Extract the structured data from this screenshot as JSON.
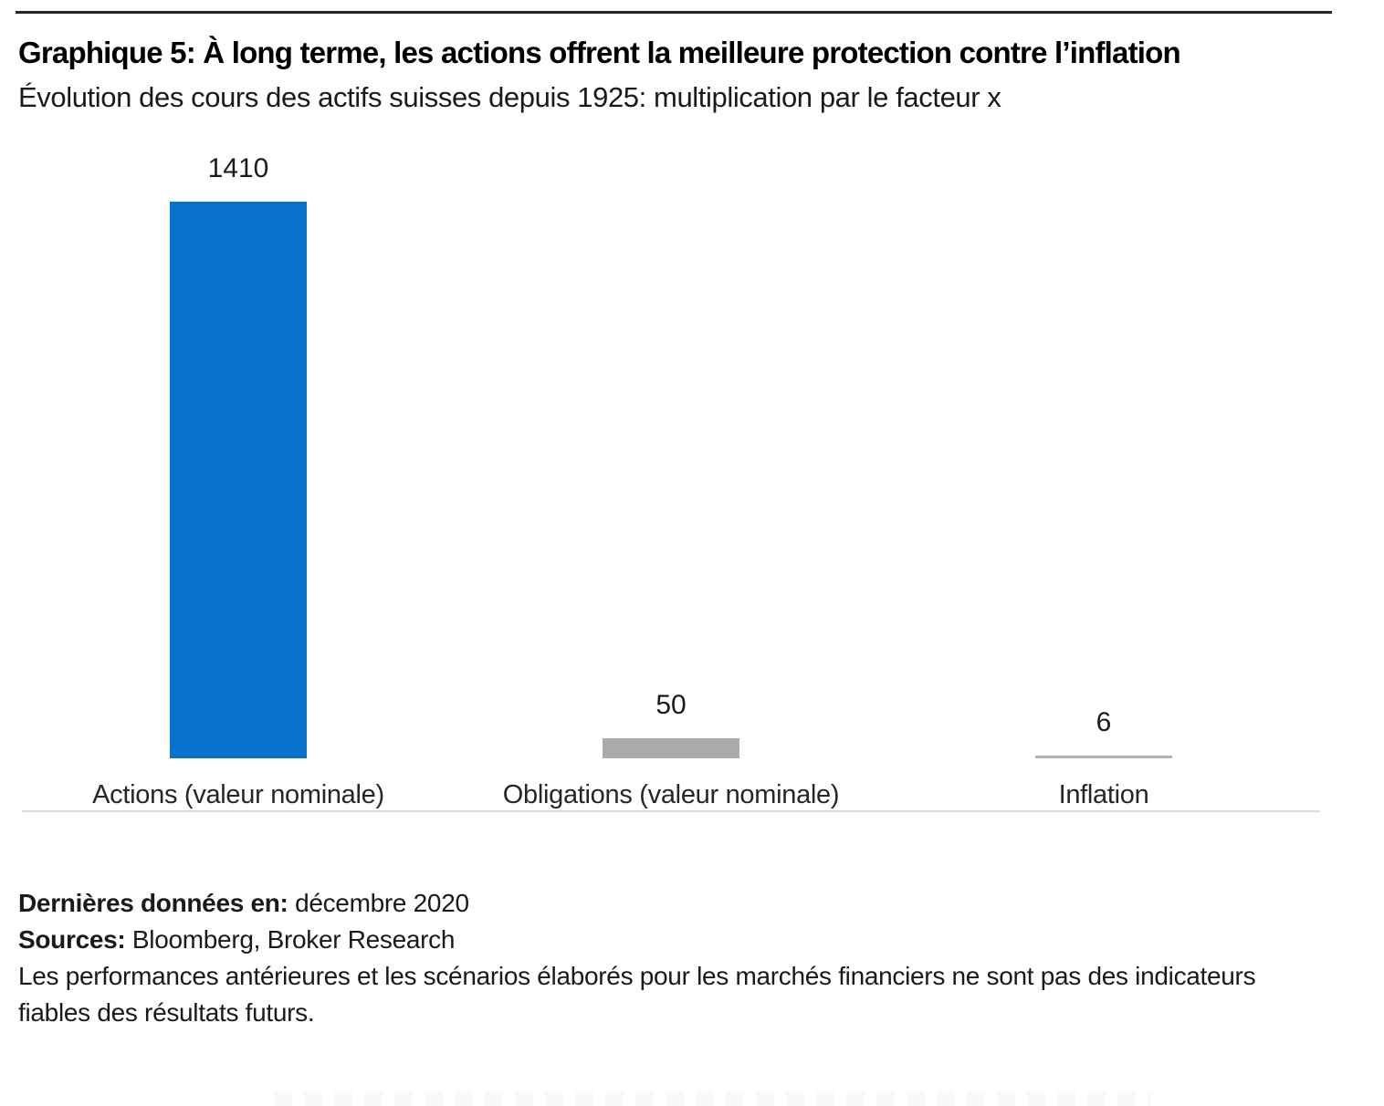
{
  "header": {
    "title": "Graphique 5: À long terme, les actions offrent la meilleure protection contre l’inflation",
    "subtitle": "Évolution des cours des actifs suisses depuis 1925: multiplication par le facteur x"
  },
  "chart_data": {
    "type": "bar",
    "title": "Graphique 5: À long terme, les actions offrent la meilleure protection contre l’inflation",
    "subtitle": "Évolution des cours des actifs suisses depuis 1925: multiplication par le facteur x",
    "categories": [
      "Actions (valeur nominale)",
      "Obligations (valeur nominale)",
      "Inflation"
    ],
    "values": [
      1410,
      50,
      6
    ],
    "data_labels": [
      "1410",
      "50",
      "6"
    ],
    "bar_colors": [
      "#0672CC",
      "#ABABAB",
      "#B3B3B3"
    ],
    "xlabel": "",
    "ylabel": "",
    "ylim": [
      0,
      1480
    ],
    "grid": false,
    "legend": false,
    "baseline_color": "#DCDCDC"
  },
  "footer": {
    "last_data_label": "Dernières données en:",
    "last_data_value": "décembre 2020",
    "sources_label": "Sources:",
    "sources_value": "Bloomberg, Broker Research",
    "disclaimer": "Les performances antérieures et les scénarios élaborés pour les marchés financiers ne sont pas des indicateurs fiables des résultats futurs."
  },
  "colors": {
    "accent_blue": "#0672CC",
    "bar_gray": "#ABABAB",
    "axis_line": "#DCDCDC",
    "top_rule": "#262626"
  }
}
